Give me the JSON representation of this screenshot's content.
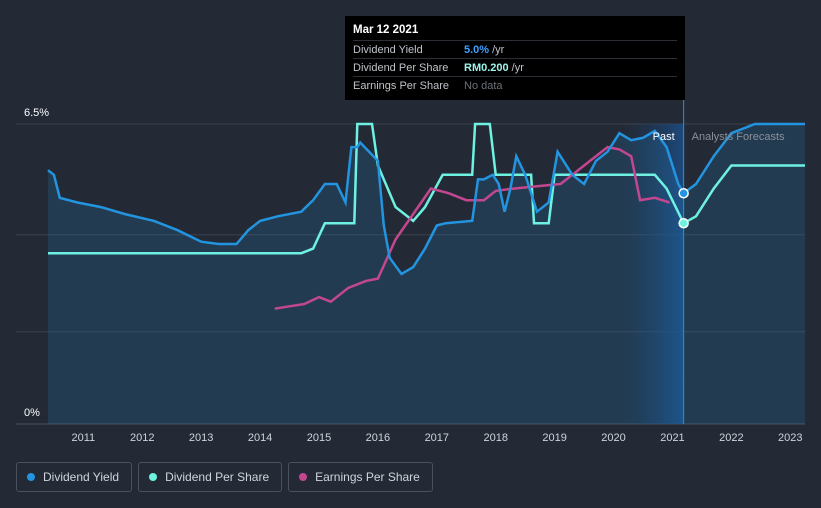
{
  "tooltip": {
    "date": "Mar 12 2021",
    "rows": [
      {
        "label": "Dividend Yield",
        "value": "5.0%",
        "unit": "/yr"
      },
      {
        "label": "Dividend Per Share",
        "value": "RM0.200",
        "unit": "/yr"
      },
      {
        "label": "Earnings Per Share",
        "value": "No data"
      }
    ]
  },
  "regions": {
    "past": "Past",
    "forecast": "Analysts Forecasts"
  },
  "legend": [
    {
      "label": "Dividend Yield",
      "color": "#2394df"
    },
    {
      "label": "Dividend Per Share",
      "color": "#6ef1e0"
    },
    {
      "label": "Earnings Per Share",
      "color": "#c3478f"
    }
  ],
  "chart_data": {
    "type": "line",
    "title": "",
    "xlabel": "",
    "ylabel": "",
    "xlim": [
      2010.4,
      2023.25
    ],
    "ylim": [
      0,
      6.5
    ],
    "y_ticks": [
      "6.5%",
      "0%"
    ],
    "x_ticks": [
      "2011",
      "2012",
      "2013",
      "2014",
      "2015",
      "2016",
      "2017",
      "2018",
      "2019",
      "2020",
      "2021",
      "2022",
      "2023"
    ],
    "gridlines": [
      0,
      2.0,
      4.1,
      6.5
    ],
    "past_end": 2021.19,
    "forecast_start": 2020.17,
    "colors": {
      "yield": "#2394df",
      "dps": "#6ef1e0",
      "eps": "#c3478f"
    },
    "series": [
      {
        "name": "Dividend Yield",
        "x": [
          2010.4,
          2010.5,
          2010.6,
          2010.9,
          2011.3,
          2011.7,
          2012.2,
          2012.6,
          2013.0,
          2013.3,
          2013.6,
          2013.8,
          2014.0,
          2014.3,
          2014.7,
          2014.9,
          2015.1,
          2015.3,
          2015.45,
          2015.55,
          2015.65,
          2015.7,
          2016.0,
          2016.1,
          2016.2,
          2016.4,
          2016.6,
          2016.8,
          2017.0,
          2017.15,
          2017.6,
          2017.7,
          2017.8,
          2017.95,
          2018.05,
          2018.15,
          2018.25,
          2018.35,
          2018.5,
          2018.7,
          2018.9,
          2019.05,
          2019.15,
          2019.3,
          2019.5,
          2019.7,
          2019.9,
          2020.1,
          2020.3,
          2020.5,
          2020.7,
          2020.9,
          2021.1,
          2021.19,
          2021.4,
          2021.7,
          2022.0,
          2022.4,
          2022.8,
          2023.25
        ],
        "values": [
          5.5,
          5.4,
          4.9,
          4.8,
          4.7,
          4.55,
          4.4,
          4.2,
          3.95,
          3.9,
          3.9,
          4.2,
          4.4,
          4.5,
          4.6,
          4.85,
          5.2,
          5.2,
          4.8,
          6.0,
          6.0,
          6.1,
          5.7,
          4.3,
          3.6,
          3.25,
          3.4,
          3.8,
          4.3,
          4.35,
          4.4,
          5.3,
          5.3,
          5.4,
          5.2,
          4.6,
          5.1,
          5.8,
          5.4,
          4.6,
          4.8,
          5.9,
          5.7,
          5.4,
          5.2,
          5.7,
          5.9,
          6.3,
          6.15,
          6.2,
          6.35,
          6.0,
          5.2,
          5.0,
          5.2,
          5.8,
          6.3,
          6.5,
          6.5,
          6.5
        ]
      },
      {
        "name": "Dividend Per Share",
        "x": [
          2010.4,
          2011.0,
          2012.0,
          2013.0,
          2014.0,
          2014.7,
          2014.9,
          2015.1,
          2015.6,
          2015.65,
          2015.7,
          2015.9,
          2016.0,
          2016.3,
          2016.6,
          2016.8,
          2017.1,
          2017.4,
          2017.6,
          2017.65,
          2017.7,
          2017.9,
          2018.0,
          2018.1,
          2018.6,
          2018.65,
          2018.7,
          2018.9,
          2019.0,
          2019.1,
          2019.6,
          2020.0,
          2020.4,
          2020.7,
          2020.9,
          2021.19,
          2021.4,
          2021.7,
          2022.0,
          2022.4,
          2023.25
        ],
        "values": [
          3.7,
          3.7,
          3.7,
          3.7,
          3.7,
          3.7,
          3.8,
          4.35,
          4.35,
          6.5,
          6.5,
          6.5,
          5.6,
          4.7,
          4.4,
          4.7,
          5.4,
          5.4,
          5.4,
          6.5,
          6.5,
          6.5,
          5.4,
          5.4,
          5.4,
          4.35,
          4.35,
          4.35,
          5.4,
          5.4,
          5.4,
          5.4,
          5.4,
          5.4,
          5.1,
          4.35,
          4.5,
          5.1,
          5.6,
          5.6,
          5.6
        ]
      },
      {
        "name": "Earnings Per Share",
        "x": [
          2014.25,
          2014.5,
          2014.75,
          2015.0,
          2015.2,
          2015.5,
          2015.8,
          2016.0,
          2016.3,
          2016.6,
          2016.9,
          2017.2,
          2017.5,
          2017.8,
          2018.0,
          2018.3,
          2018.7,
          2019.1,
          2019.3,
          2019.6,
          2019.9,
          2020.1,
          2020.3,
          2020.45,
          2020.7,
          2020.95
        ],
        "values": [
          2.5,
          2.55,
          2.6,
          2.75,
          2.65,
          2.95,
          3.1,
          3.15,
          4.0,
          4.55,
          5.1,
          5.0,
          4.85,
          4.85,
          5.05,
          5.1,
          5.15,
          5.2,
          5.4,
          5.7,
          6.0,
          5.95,
          5.8,
          4.85,
          4.9,
          4.8
        ]
      }
    ],
    "markers": [
      {
        "series": "Dividend Yield",
        "x": 2021.19,
        "value": 5.0
      },
      {
        "series": "Dividend Per Share",
        "x": 2021.19,
        "value": 4.35
      }
    ]
  }
}
